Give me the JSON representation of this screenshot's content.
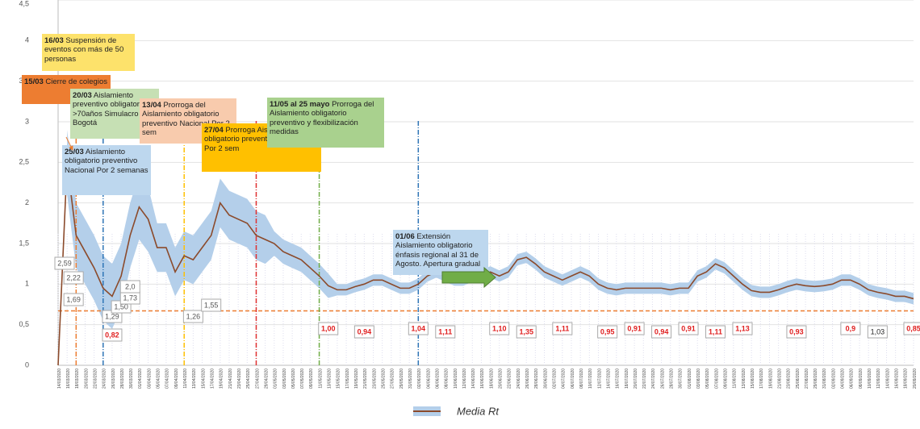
{
  "chart_data": {
    "type": "line",
    "categories": [
      "14/03/2020",
      "16/03/2020",
      "18/03/2020",
      "20/03/2020",
      "22/03/2020",
      "24/03/2020",
      "26/03/2020",
      "28/03/2020",
      "30/03/2020",
      "01/04/2020",
      "03/04/2020",
      "05/04/2020",
      "07/04/2020",
      "09/04/2020",
      "11/04/2020",
      "13/04/2020",
      "15/04/2020",
      "17/04/2020",
      "19/04/2020",
      "21/04/2020",
      "23/04/2020",
      "25/04/2020",
      "27/04/2020",
      "29/04/2020",
      "01/05/2020",
      "03/05/2020",
      "05/05/2020",
      "07/05/2020",
      "09/05/2020",
      "11/05/2020",
      "13/05/2020",
      "15/05/2020",
      "17/05/2020",
      "19/05/2020",
      "21/05/2020",
      "23/05/2020",
      "25/05/2020",
      "27/05/2020",
      "29/05/2020",
      "31/05/2020",
      "02/06/2020",
      "04/06/2020",
      "06/06/2020",
      "08/06/2020",
      "10/06/2020",
      "12/06/2020",
      "14/06/2020",
      "16/06/2020",
      "18/06/2020",
      "20/06/2020",
      "22/06/2020",
      "24/06/2020",
      "26/06/2020",
      "28/06/2020",
      "30/06/2020",
      "02/07/2020",
      "04/07/2020",
      "06/07/2020",
      "08/07/2020",
      "10/07/2020",
      "12/07/2020",
      "14/07/2020",
      "16/07/2020",
      "18/07/2020",
      "20/07/2020",
      "22/07/2020",
      "24/07/2020",
      "26/07/2020",
      "28/07/2020",
      "30/07/2020",
      "01/08/2020",
      "03/08/2020",
      "05/08/2020",
      "07/08/2020",
      "09/08/2020",
      "11/08/2020",
      "13/08/2020",
      "15/08/2020",
      "17/08/2020",
      "19/08/2020",
      "21/08/2020",
      "23/08/2020",
      "25/08/2020",
      "27/08/2020",
      "29/08/2020",
      "31/08/2020",
      "02/09/2020",
      "04/09/2020",
      "06/09/2020",
      "08/09/2020",
      "10/09/2020",
      "12/09/2020",
      "14/09/2020",
      "16/09/2020",
      "18/09/2020",
      "20/09/2020"
    ],
    "series": [
      {
        "name": "Media Rt",
        "color": "#8b4a2b",
        "values": [
          0,
          2.5,
          1.6,
          1.4,
          1.2,
          0.95,
          0.85,
          1.1,
          1.6,
          1.95,
          1.8,
          1.45,
          1.45,
          1.15,
          1.35,
          1.3,
          1.45,
          1.6,
          2.0,
          1.85,
          1.8,
          1.75,
          1.6,
          1.55,
          1.5,
          1.4,
          1.35,
          1.3,
          1.2,
          1.1,
          0.98,
          0.93,
          0.93,
          0.97,
          1.0,
          1.05,
          1.05,
          1.0,
          0.95,
          0.95,
          1.0,
          1.1,
          1.15,
          1.1,
          1.05,
          1.05,
          1.1,
          1.1,
          1.15,
          1.1,
          1.15,
          1.3,
          1.33,
          1.25,
          1.15,
          1.1,
          1.05,
          1.1,
          1.15,
          1.1,
          1.0,
          0.95,
          0.93,
          0.95,
          0.95,
          0.95,
          0.95,
          0.95,
          0.93,
          0.95,
          0.95,
          1.1,
          1.15,
          1.25,
          1.2,
          1.1,
          1.0,
          0.92,
          0.9,
          0.9,
          0.93,
          0.97,
          1.0,
          0.98,
          0.97,
          0.98,
          1.0,
          1.05,
          1.05,
          1.0,
          0.93,
          0.9,
          0.88,
          0.85,
          0.85,
          0.82
        ]
      }
    ],
    "band": {
      "color": "#b4cfea",
      "upper": [
        null,
        2.9,
        2.0,
        1.8,
        1.6,
        1.35,
        1.25,
        1.5,
        2.0,
        2.35,
        2.2,
        1.75,
        1.75,
        1.45,
        1.65,
        1.6,
        1.75,
        1.9,
        2.3,
        2.15,
        2.1,
        2.05,
        1.9,
        1.85,
        1.65,
        1.55,
        1.5,
        1.45,
        1.35,
        1.25,
        1.13,
        1.0,
        1.0,
        1.04,
        1.07,
        1.12,
        1.12,
        1.07,
        1.02,
        1.02,
        1.07,
        1.17,
        1.22,
        1.17,
        1.12,
        1.12,
        1.17,
        1.17,
        1.22,
        1.17,
        1.22,
        1.37,
        1.4,
        1.32,
        1.22,
        1.17,
        1.12,
        1.17,
        1.22,
        1.17,
        1.07,
        1.02,
        1.0,
        1.02,
        1.02,
        1.02,
        1.02,
        1.02,
        1.0,
        1.02,
        1.02,
        1.17,
        1.22,
        1.32,
        1.27,
        1.17,
        1.07,
        0.99,
        0.97,
        0.97,
        1.0,
        1.04,
        1.07,
        1.05,
        1.04,
        1.05,
        1.07,
        1.12,
        1.12,
        1.07,
        1.0,
        0.97,
        0.95,
        0.92,
        0.92,
        0.89
      ],
      "lower": [
        null,
        2.1,
        1.2,
        1.0,
        0.8,
        0.55,
        0.45,
        0.7,
        1.2,
        1.55,
        1.4,
        1.15,
        1.15,
        0.85,
        1.05,
        1.0,
        1.15,
        1.3,
        1.7,
        1.55,
        1.5,
        1.45,
        1.3,
        1.25,
        1.35,
        1.25,
        1.2,
        1.15,
        1.05,
        0.95,
        0.83,
        0.86,
        0.86,
        0.9,
        0.93,
        0.98,
        0.98,
        0.93,
        0.88,
        0.88,
        0.93,
        1.03,
        1.08,
        1.03,
        0.98,
        0.98,
        1.03,
        1.03,
        1.08,
        1.03,
        1.08,
        1.23,
        1.26,
        1.18,
        1.08,
        1.03,
        0.98,
        1.03,
        1.08,
        1.03,
        0.93,
        0.88,
        0.86,
        0.88,
        0.88,
        0.88,
        0.88,
        0.88,
        0.86,
        0.88,
        0.88,
        1.03,
        1.08,
        1.18,
        1.13,
        1.03,
        0.93,
        0.85,
        0.83,
        0.83,
        0.86,
        0.9,
        0.93,
        0.91,
        0.9,
        0.91,
        0.93,
        0.98,
        0.98,
        0.93,
        0.86,
        0.83,
        0.81,
        0.78,
        0.78,
        0.75
      ]
    },
    "ylim": [
      0,
      4.5
    ],
    "yticks": [
      0,
      {
        "value": 0.5,
        "label": "0,5"
      },
      1,
      {
        "value": 1.5,
        "label": "1,5"
      },
      2,
      {
        "value": 2.5,
        "label": "2,5"
      },
      3,
      {
        "value": 3.5,
        "label": "3,5"
      },
      4,
      {
        "value": 4.5,
        "label": "4,5"
      }
    ],
    "grid": true,
    "hline": {
      "value": 0.67,
      "color": "#ed7d31"
    },
    "vlines": [
      {
        "x": "18/03/2020",
        "color": "#ed7d31"
      },
      {
        "x": "24/03/2020",
        "color": "#2e75b6"
      },
      {
        "x": "11/04/2020",
        "color": "#ffc000"
      },
      {
        "x": "27/04/2020",
        "color": "#e03030"
      },
      {
        "x": "11/05/2020",
        "color": "#70ad47"
      },
      {
        "x": "02/06/2020",
        "color": "#2e75b6"
      }
    ],
    "annotations": [
      {
        "bold": "16/03",
        "text": "Suspensión de eventos con más de 50 personas",
        "color": "#fde26b"
      },
      {
        "bold": "15/03",
        "text": "Cierre de colegios",
        "color": "#ed7d31"
      },
      {
        "bold": "20/03",
        "text": "Aislamiento preventivo obligatorio >70años Simulacro Bogotá",
        "color": "#c6e0b4"
      },
      {
        "bold": "13/04",
        "text": "Prorroga del Aislamiento obligatorio preventivo Nacional Por 2 sem",
        "color": "#f8cbad"
      },
      {
        "bold": "27/04",
        "text": "Prorroga Aislamiento obligatorio preventivo Nacional Por 2 sem",
        "color": "#ffc000"
      },
      {
        "bold": "11/05 al 25 mayo",
        "text": "Prorroga del Aislamiento obligatorio preventivo y flexibilización medidas",
        "color": "#a9d18e"
      },
      {
        "bold": "25/03",
        "text": "Aislamiento obligatorio preventivo Nacional Por 2 semanas",
        "color": "#bdd7ee"
      },
      {
        "bold": "01/06",
        "text": "Extensión Aislamiento obligatorio énfasis regional al 31 de Agosto. Apertura gradual",
        "color": "#bdd7ee"
      }
    ],
    "point_labels": [
      {
        "x": "14/03/2020",
        "label": "2,59",
        "color": "#555555"
      },
      {
        "x": "16/03/2020",
        "label": "2,22",
        "color": "#555555"
      },
      {
        "x": "16/03/2020",
        "label": "1,69",
        "color": "#555555"
      },
      {
        "x": "26/03/2020",
        "label": "0,82",
        "color": "#e02020"
      },
      {
        "x": "26/03/2020",
        "label": "1,29",
        "color": "#555555"
      },
      {
        "x": "28/03/2020",
        "label": "1,50",
        "color": "#555555"
      },
      {
        "x": "30/03/2020",
        "label": "1,73",
        "color": "#555555"
      },
      {
        "x": "30/03/2020",
        "label": "2,0",
        "color": "#555555"
      },
      {
        "x": "13/04/2020",
        "label": "1,26",
        "color": "#555555"
      },
      {
        "x": "17/04/2020",
        "label": "1,55",
        "color": "#555555"
      },
      {
        "x": "13/05/2020",
        "label": "1,00",
        "color": "#e02020"
      },
      {
        "x": "21/05/2020",
        "label": "0,94",
        "color": "#e02020"
      },
      {
        "x": "02/06/2020",
        "label": "1,04",
        "color": "#e02020"
      },
      {
        "x": "08/06/2020",
        "label": "1,11",
        "color": "#e02020"
      },
      {
        "x": "20/06/2020",
        "label": "1,10",
        "color": "#e02020"
      },
      {
        "x": "26/06/2020",
        "label": "1,35",
        "color": "#e02020"
      },
      {
        "x": "04/07/2020",
        "label": "1,11",
        "color": "#e02020"
      },
      {
        "x": "14/07/2020",
        "label": "0,95",
        "color": "#e02020"
      },
      {
        "x": "20/07/2020",
        "label": "0,91",
        "color": "#e02020"
      },
      {
        "x": "26/07/2020",
        "label": "0,94",
        "color": "#e02020"
      },
      {
        "x": "01/08/2020",
        "label": "0,91",
        "color": "#e02020"
      },
      {
        "x": "07/08/2020",
        "label": "1,11",
        "color": "#e02020"
      },
      {
        "x": "13/08/2020",
        "label": "1,13",
        "color": "#e02020"
      },
      {
        "x": "25/08/2020",
        "label": "0,93",
        "color": "#e02020"
      },
      {
        "x": "06/09/2020",
        "label": "0,9",
        "color": "#e02020"
      },
      {
        "x": "12/09/2020",
        "label": "1,03",
        "color": "#222222"
      },
      {
        "x": "20/09/2020",
        "label": "0,85",
        "color": "#e02020"
      }
    ]
  }
}
